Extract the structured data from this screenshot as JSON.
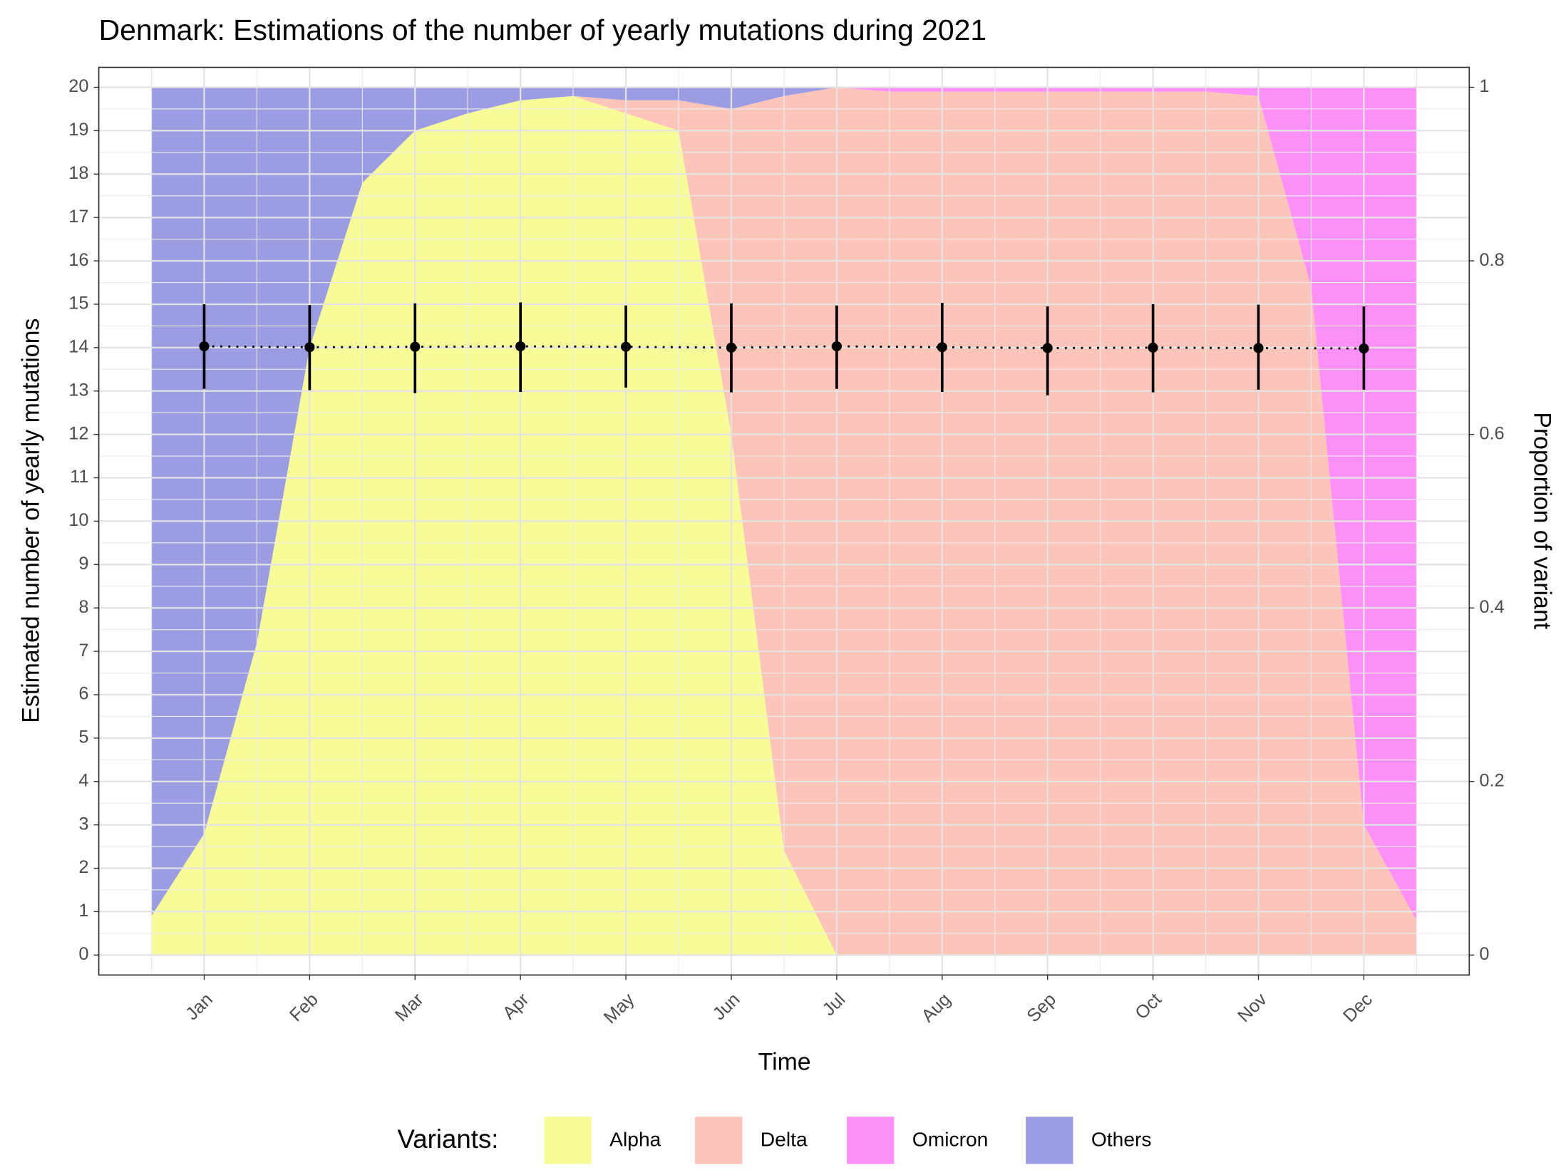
{
  "chart_data": {
    "type": "area_with_errorbars",
    "title": "Denmark: Estimations of the number of yearly mutations during 2021",
    "xlabel": "Time",
    "ylabel": "Estimated number of yearly mutations",
    "y2label": "Proportion of variant",
    "legend_title": "Variants:",
    "legend": "bottom",
    "grid": true,
    "xlim": [
      0,
      13
    ],
    "xticks": [
      {
        "value": 1,
        "label": "Jan"
      },
      {
        "value": 2,
        "label": "Feb"
      },
      {
        "value": 3,
        "label": "Mar"
      },
      {
        "value": 4,
        "label": "Apr"
      },
      {
        "value": 5,
        "label": "May"
      },
      {
        "value": 6,
        "label": "Jun"
      },
      {
        "value": 7,
        "label": "Jul"
      },
      {
        "value": 8,
        "label": "Aug"
      },
      {
        "value": 9,
        "label": "Sep"
      },
      {
        "value": 10,
        "label": "Oct"
      },
      {
        "value": 11,
        "label": "Nov"
      },
      {
        "value": 12,
        "label": "Dec"
      }
    ],
    "ylim": [
      -0.46,
      20.46
    ],
    "yticks": [
      0,
      1,
      2,
      3,
      4,
      5,
      6,
      7,
      8,
      9,
      10,
      11,
      12,
      13,
      14,
      15,
      16,
      17,
      18,
      19,
      20
    ],
    "y2lim": [
      -0.023,
      1.023
    ],
    "y2ticks": [
      0,
      0.2,
      0.4,
      0.6,
      0.8,
      1
    ],
    "area_x": [
      0.5,
      1,
      1.5,
      2,
      2.5,
      3,
      3.5,
      4,
      4.5,
      5,
      5.5,
      6,
      6.5,
      7,
      7.5,
      8,
      8.5,
      9,
      9.5,
      10,
      10.5,
      11,
      11.5,
      12,
      12.5
    ],
    "series": [
      {
        "name": "Alpha",
        "color": "#f8fc98",
        "axis": "y2",
        "values": [
          0.045,
          0.14,
          0.36,
          0.7,
          0.89,
          0.95,
          0.97,
          0.985,
          0.99,
          0.97,
          0.95,
          0.6,
          0.12,
          0,
          0,
          0,
          0,
          0,
          0,
          0,
          0,
          0,
          0,
          0,
          0
        ]
      },
      {
        "name": "Delta",
        "color": "#fdc5b9",
        "axis": "y2",
        "values": [
          0,
          0,
          0,
          0,
          0,
          0,
          0,
          0,
          0,
          0.015,
          0.035,
          0.375,
          0.87,
          1,
          0.995,
          0.995,
          0.995,
          0.995,
          0.995,
          0.995,
          0.995,
          0.99,
          0.77,
          0.15,
          0.04
        ]
      },
      {
        "name": "Omicron",
        "color": "#fd90f8",
        "axis": "y2",
        "values": [
          0,
          0,
          0,
          0,
          0,
          0,
          0,
          0,
          0,
          0,
          0,
          0,
          0,
          0,
          0.005,
          0.005,
          0.005,
          0.005,
          0.005,
          0.005,
          0.005,
          0.01,
          0.23,
          0.85,
          0.96
        ]
      },
      {
        "name": "Others",
        "color": "#9c9ce3",
        "axis": "y2",
        "values": [
          0.955,
          0.86,
          0.64,
          0.3,
          0.11,
          0.05,
          0.03,
          0.015,
          0.01,
          0.015,
          0.015,
          0.025,
          0.01,
          0,
          0,
          0,
          0,
          0,
          0,
          0,
          0,
          0,
          0,
          0,
          0
        ]
      }
    ],
    "estimate": {
      "x": [
        1,
        2,
        3,
        4,
        5,
        6,
        7,
        8,
        9,
        10,
        11,
        12
      ],
      "values": [
        14.03,
        14.01,
        14.02,
        14.03,
        14.02,
        14.0,
        14.03,
        14.01,
        13.99,
        14.0,
        13.99,
        13.98
      ],
      "lower": [
        13.05,
        13.02,
        12.95,
        12.98,
        13.08,
        12.97,
        13.05,
        12.98,
        12.9,
        12.97,
        13.03,
        13.03
      ],
      "upper": [
        15.0,
        14.98,
        15.02,
        15.04,
        14.97,
        15.02,
        14.97,
        15.03,
        14.95,
        15.0,
        14.99,
        14.95
      ],
      "color": "#000000"
    }
  }
}
